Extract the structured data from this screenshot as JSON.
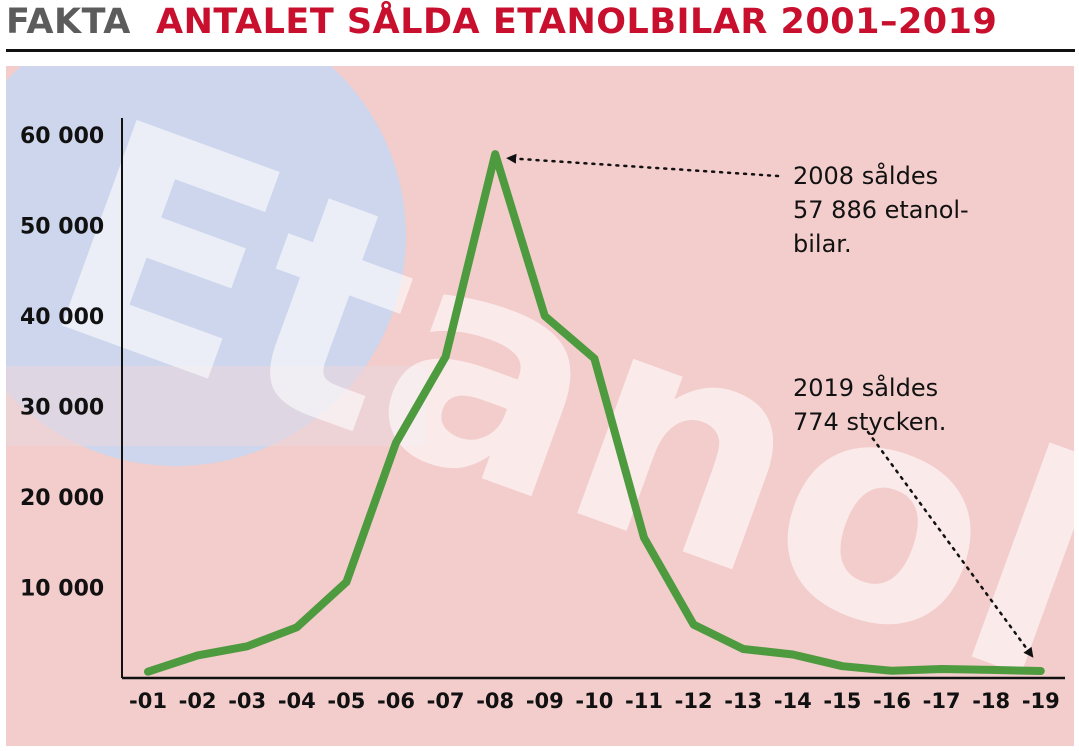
{
  "header": {
    "kicker": "FAKTA",
    "title": "ANTALET SÅLDA ETANOLBILAR 2001–2019"
  },
  "background": {
    "watermark_text": "Etanol",
    "colors": {
      "panel": "#f3cccc",
      "circle": "#cdd6ec",
      "line": "#4e9a3f",
      "title": "#c8102e",
      "kicker": "#5c5c5c"
    }
  },
  "chart_data": {
    "type": "line",
    "title": "ANTALET SÅLDA ETANOLBILAR 2001–2019",
    "xlabel": "",
    "ylabel": "",
    "categories": [
      "-01",
      "-02",
      "-03",
      "-04",
      "-05",
      "-06",
      "-07",
      "-08",
      "-09",
      "-10",
      "-11",
      "-12",
      "-13",
      "-14",
      "-15",
      "-16",
      "-17",
      "-18",
      "-19"
    ],
    "values": [
      700,
      2500,
      3500,
      5600,
      10600,
      26000,
      35500,
      57886,
      40000,
      35300,
      15500,
      5900,
      3200,
      2600,
      1300,
      800,
      1000,
      900,
      774
    ],
    "ylim": [
      0,
      60000
    ],
    "yticks": [
      {
        "value": 10000,
        "label": "10 000"
      },
      {
        "value": 20000,
        "label": "20 000"
      },
      {
        "value": 30000,
        "label": "30 000"
      },
      {
        "value": 40000,
        "label": "40 000"
      },
      {
        "value": 50000,
        "label": "50 000"
      },
      {
        "value": 60000,
        "label": "60 000"
      }
    ],
    "grid": false,
    "annotations": [
      {
        "lines": [
          "2008 såldes",
          "57 886 etanol-",
          "bilar."
        ],
        "target_index": 7
      },
      {
        "lines": [
          "2019 såldes",
          "774 stycken."
        ],
        "target_index": 18
      }
    ]
  }
}
